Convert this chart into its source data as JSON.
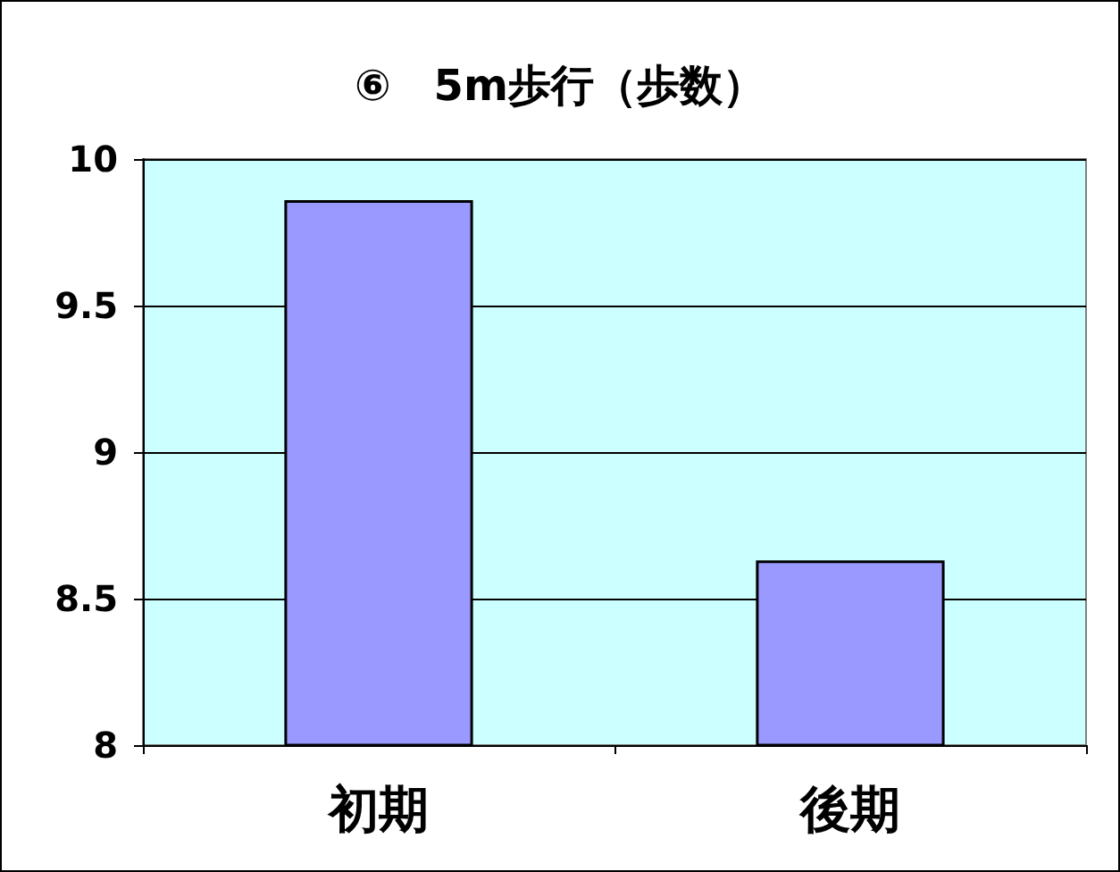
{
  "chart_data": {
    "type": "bar",
    "title": "⑥　5m歩行（歩数）",
    "categories": [
      "初期",
      "後期"
    ],
    "values": [
      9.86,
      8.63
    ],
    "color": "#9999ff",
    "ylim": [
      8,
      10
    ],
    "yticks": [
      8,
      8.5,
      9,
      9.5,
      10
    ],
    "grid": "y"
  }
}
